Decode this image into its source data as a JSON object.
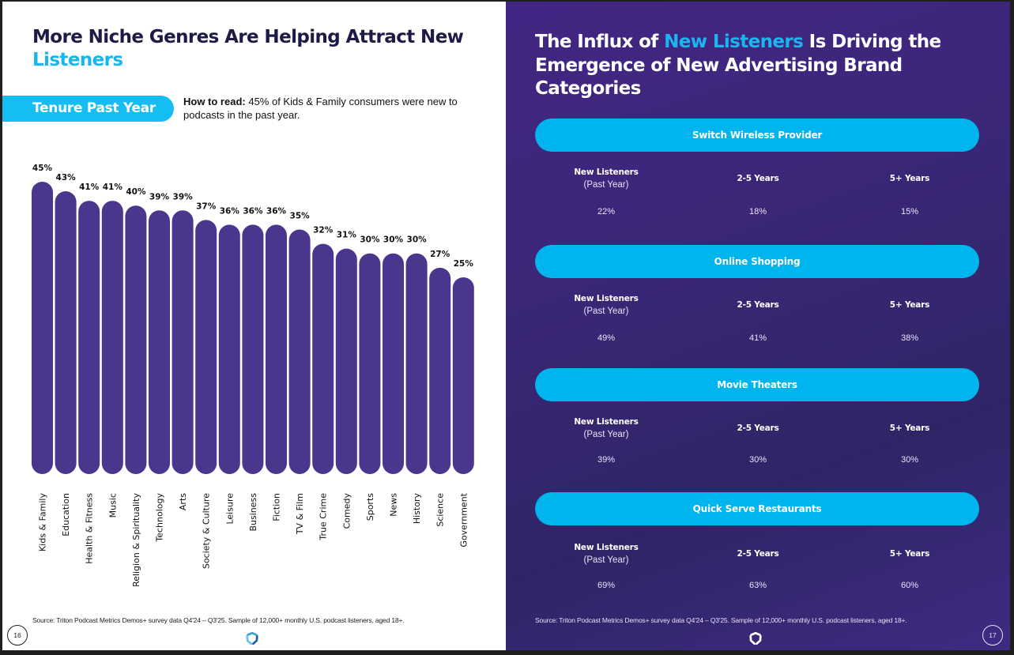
{
  "left_page": {
    "title_part1": "More Niche Genres Are Helping Attract New ",
    "title_accent": "Listeners",
    "tenure_pill": "Tenure Past Year",
    "how_to_read_label": "How to read:",
    "how_to_read_text": " 45% of Kids & Family consumers were new to podcasts in the past year.",
    "source": "Source: Triton Podcast Metrics Demos+ survey data Q4'24 – Q3'25. Sample of 12,000+ monthly U.S. podcast listeners, aged 18+.",
    "page_number": "16",
    "logo_icon": "triton-logo-icon"
  },
  "chart_data": {
    "type": "bar",
    "title": "Tenure Past Year",
    "xlabel": "",
    "ylabel": "",
    "categories": [
      "Kids & Family",
      "Education",
      "Health & Fitness",
      "Music",
      "Religion & Spirituality",
      "Technology",
      "Arts",
      "Society & Culture",
      "Leisure",
      "Business",
      "Fiction",
      "TV & Film",
      "True Crime",
      "Comedy",
      "Sports",
      "News",
      "History",
      "Science",
      "Government"
    ],
    "values": [
      45,
      43,
      41,
      41,
      40,
      39,
      39,
      37,
      36,
      36,
      36,
      35,
      32,
      31,
      30,
      30,
      30,
      27,
      25
    ],
    "value_labels": [
      "45%",
      "43%",
      "41%",
      "41%",
      "40%",
      "39%",
      "39%",
      "37%",
      "36%",
      "36%",
      "36%",
      "35%",
      "32%",
      "31%",
      "30%",
      "30%",
      "30%",
      "27%",
      "25%"
    ],
    "unit": "%",
    "grid": false,
    "legend": "none",
    "bar_color": "#4b368e"
  },
  "right_page": {
    "title_part1": "The Influx of ",
    "title_accent": "New Listeners",
    "title_part2": " Is Driving the Emergence of New Advertising Brand Categories",
    "columns": [
      {
        "head": "New Listeners",
        "sub": "(Past Year)"
      },
      {
        "head": "2-5 Years",
        "sub": ""
      },
      {
        "head": "5+ Years",
        "sub": ""
      }
    ],
    "categories": [
      {
        "name": "Switch Wireless Provider",
        "values": [
          "22%",
          "18%",
          "15%"
        ]
      },
      {
        "name": "Online Shopping",
        "values": [
          "49%",
          "41%",
          "38%"
        ]
      },
      {
        "name": "Movie Theaters",
        "values": [
          "39%",
          "30%",
          "30%"
        ]
      },
      {
        "name": "Quick Serve Restaurants",
        "values": [
          "69%",
          "63%",
          "60%"
        ]
      }
    ],
    "source": "Source: Triton Podcast Metrics Demos+ survey data Q4'24 – Q3'25. Sample of 12,000+ monthly U.S. podcast listeners, aged 18+.",
    "page_number": "17",
    "logo_icon": "triton-logo-icon"
  },
  "colors": {
    "accent": "#14b8ef",
    "pill": "#00b4ee",
    "bar": "#4b368e",
    "title_dark": "#1d1a45",
    "right_bg": "#3a2676"
  }
}
